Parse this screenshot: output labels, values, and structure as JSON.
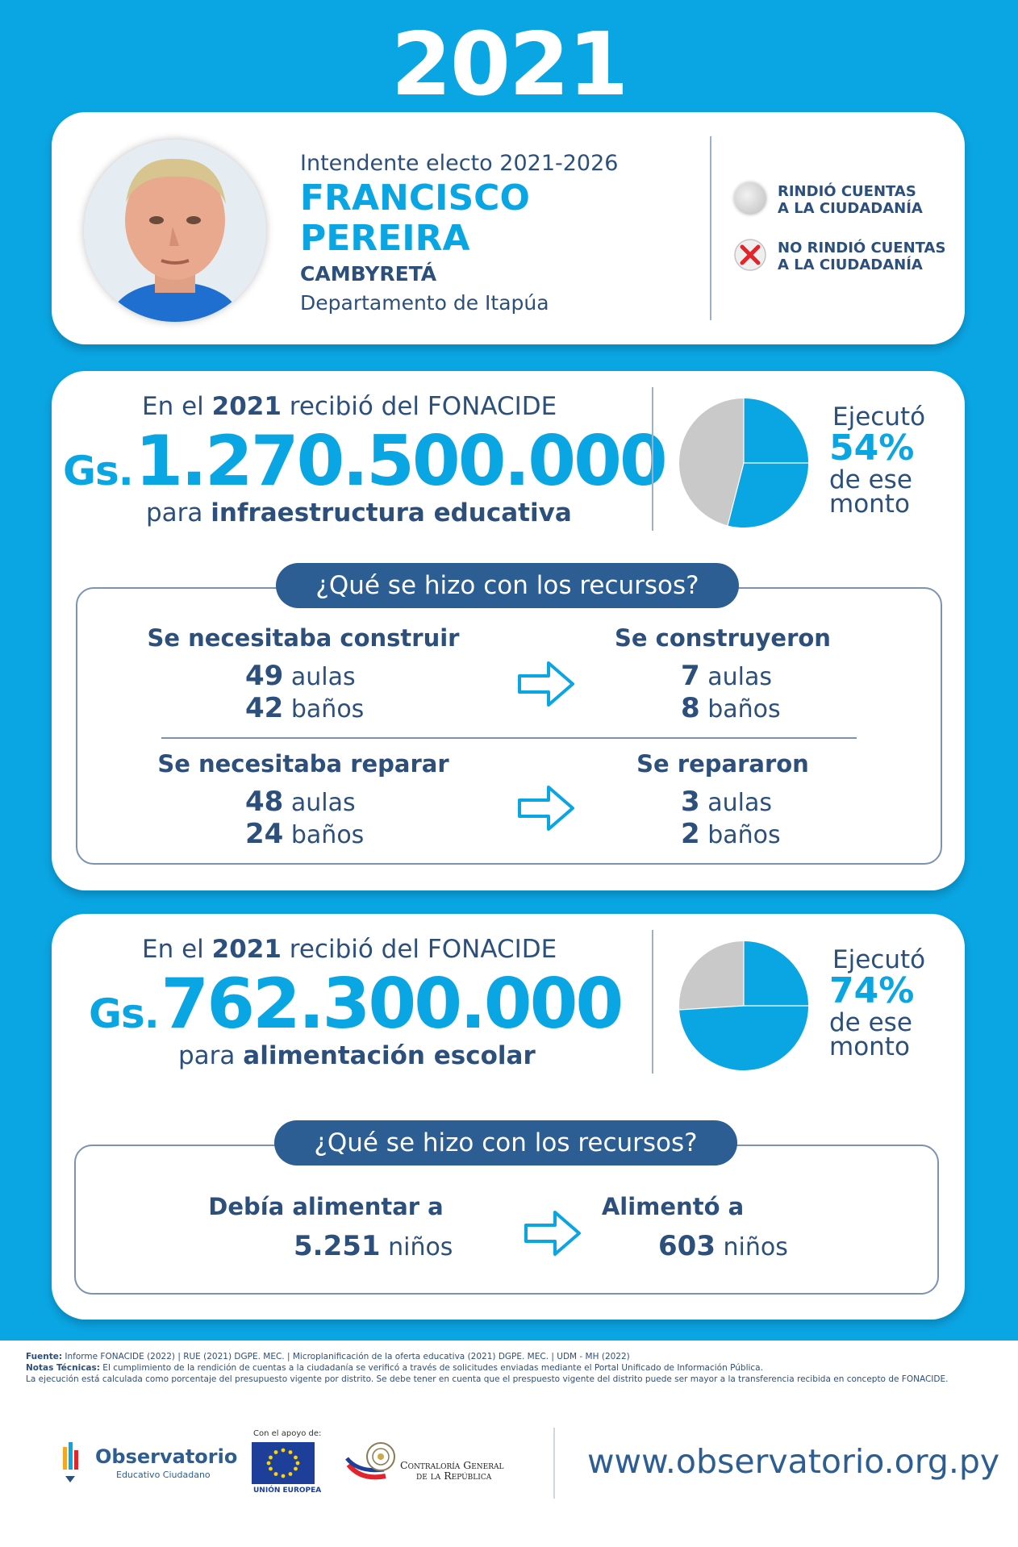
{
  "year": "2021",
  "header": {
    "role": "Intendente electo 2021-2026",
    "name_line1": "FRANCISCO",
    "name_line2": "PEREIRA",
    "municipality": "CAMBYRETÁ",
    "department": "Departamento de Itapúa",
    "legend": [
      {
        "icon": "gray-circle-icon",
        "line1": "RINDIÓ CUENTAS",
        "line2": "A LA CIUDADANÍA"
      },
      {
        "icon": "red-x-icon",
        "line1": "NO RINDIÓ CUENTAS",
        "line2": "A LA CIUDADANÍA"
      }
    ]
  },
  "infra": {
    "received_pre": "En el ",
    "received_year": "2021",
    "received_post": " recibió del FONACIDE",
    "currency": "Gs.",
    "amount": "1.270.500.000",
    "purpose_pre": "para ",
    "purpose": "infraestructura educativa",
    "executed_label": "Ejecutó",
    "executed_pct": "54%",
    "executed_fraction": 0.54,
    "executed_suffix1": "de ese",
    "executed_suffix2": "monto",
    "question": "¿Qué se hizo con los recursos?",
    "build_needed_title": "Se necesitaba construir",
    "build_needed": [
      {
        "n": "49",
        "unit": "aulas"
      },
      {
        "n": "42",
        "unit": "baños"
      }
    ],
    "built_title": "Se construyeron",
    "built": [
      {
        "n": "7",
        "unit": "aulas"
      },
      {
        "n": "8",
        "unit": "baños"
      }
    ],
    "repair_needed_title": "Se necesitaba reparar",
    "repair_needed": [
      {
        "n": "48",
        "unit": "aulas"
      },
      {
        "n": "24",
        "unit": "baños"
      }
    ],
    "repaired_title": "Se repararon",
    "repaired": [
      {
        "n": "3",
        "unit": "aulas"
      },
      {
        "n": "2",
        "unit": "baños"
      }
    ]
  },
  "food": {
    "received_pre": "En el ",
    "received_year": "2021",
    "received_post": " recibió del FONACIDE",
    "currency": "Gs.",
    "amount": "762.300.000",
    "purpose_pre": "para ",
    "purpose": "alimentación escolar",
    "executed_label": "Ejecutó",
    "executed_pct": "74%",
    "executed_fraction": 0.74,
    "executed_suffix1": "de ese",
    "executed_suffix2": "monto",
    "question": "¿Qué se hizo con los recursos?",
    "needed_title": "Debía alimentar a",
    "needed_n": "5.251",
    "needed_unit": "niños",
    "fed_title": "Alimentó a",
    "fed_n": "603",
    "fed_unit": "niños"
  },
  "footer": {
    "source_label": "Fuente:",
    "source": " Informe FONACIDE (2022) | RUE (2021) DGPE. MEC. | Microplanificación de la oferta educativa (2021) DGPE. MEC. | UDM - MH (2022)",
    "notes_label": "Notas Técnicas:",
    "notes": "  El cumplimiento de la rendición de cuentas a la ciudadanía se verificó a través de solicitudes enviadas mediante el Portal Unificado de Información Pública.",
    "notes2": "La ejecución está calculada como porcentaje del presupuesto vigente por distrito. Se debe tener en cuenta que el prespuesto vigente del distrito puede ser mayor a la transferencia recibida en concepto de FONACIDE.",
    "logo_obs": "Observatorio",
    "logo_obs_sub": "Educativo Ciudadano",
    "eu_support": "Con el apoyo de:",
    "eu_label": "UNIÓN EUROPEA",
    "cgr_line1": "Contraloría General",
    "cgr_line2": "de la República",
    "url": "www.observatorio.org.py"
  }
}
